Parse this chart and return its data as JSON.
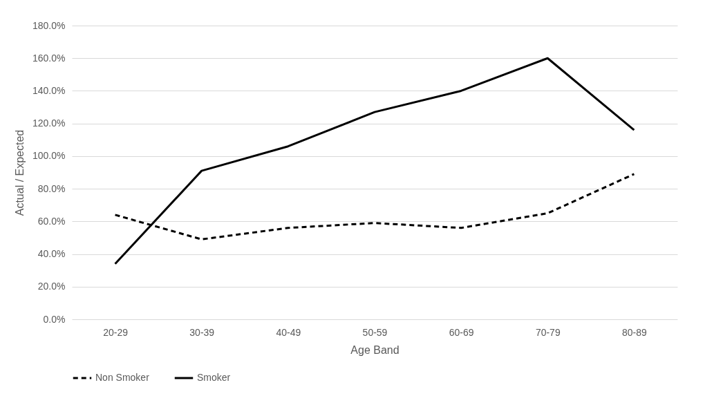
{
  "chart_data": {
    "type": "line",
    "xlabel": "Age Band",
    "ylabel": "Actual / Expected",
    "categories": [
      "20-29",
      "30-39",
      "40-49",
      "50-59",
      "60-69",
      "70-79",
      "80-89"
    ],
    "series": [
      {
        "name": "Non Smoker",
        "color": "#000000",
        "line_style": "dashed",
        "values": [
          64,
          49,
          56,
          59,
          56,
          65,
          89
        ]
      },
      {
        "name": "Smoker",
        "color": "#000000",
        "line_style": "solid",
        "values": [
          34,
          91,
          106,
          127,
          140,
          160,
          116
        ]
      }
    ],
    "ylim": [
      0,
      180
    ],
    "yticks": [
      {
        "value": 0,
        "label": "0.0%"
      },
      {
        "value": 20,
        "label": "20.0%"
      },
      {
        "value": 40,
        "label": "40.0%"
      },
      {
        "value": 60,
        "label": "60.0%"
      },
      {
        "value": 80,
        "label": "80.0%"
      },
      {
        "value": 100,
        "label": "100.0%"
      },
      {
        "value": 120,
        "label": "120.0%"
      },
      {
        "value": 140,
        "label": "140.0%"
      },
      {
        "value": 160,
        "label": "160.0%"
      },
      {
        "value": 180,
        "label": "180.0%"
      }
    ],
    "grid": "y",
    "legend": "bottom",
    "marker": "none"
  }
}
